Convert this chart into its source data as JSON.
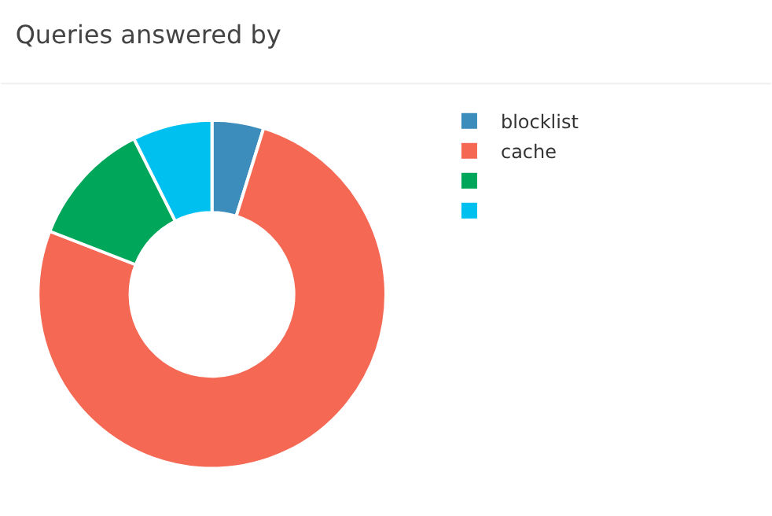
{
  "chart_data": {
    "type": "donut",
    "title": "Queries answered by",
    "categories": [
      "blocklist",
      "cache",
      null,
      null
    ],
    "values": [
      4.8,
      76.1,
      11.7,
      7.4
    ],
    "colors": [
      "#3c8dbc",
      "#f56954",
      "#00a65a",
      "#00c0ef"
    ],
    "legend": "top right"
  }
}
